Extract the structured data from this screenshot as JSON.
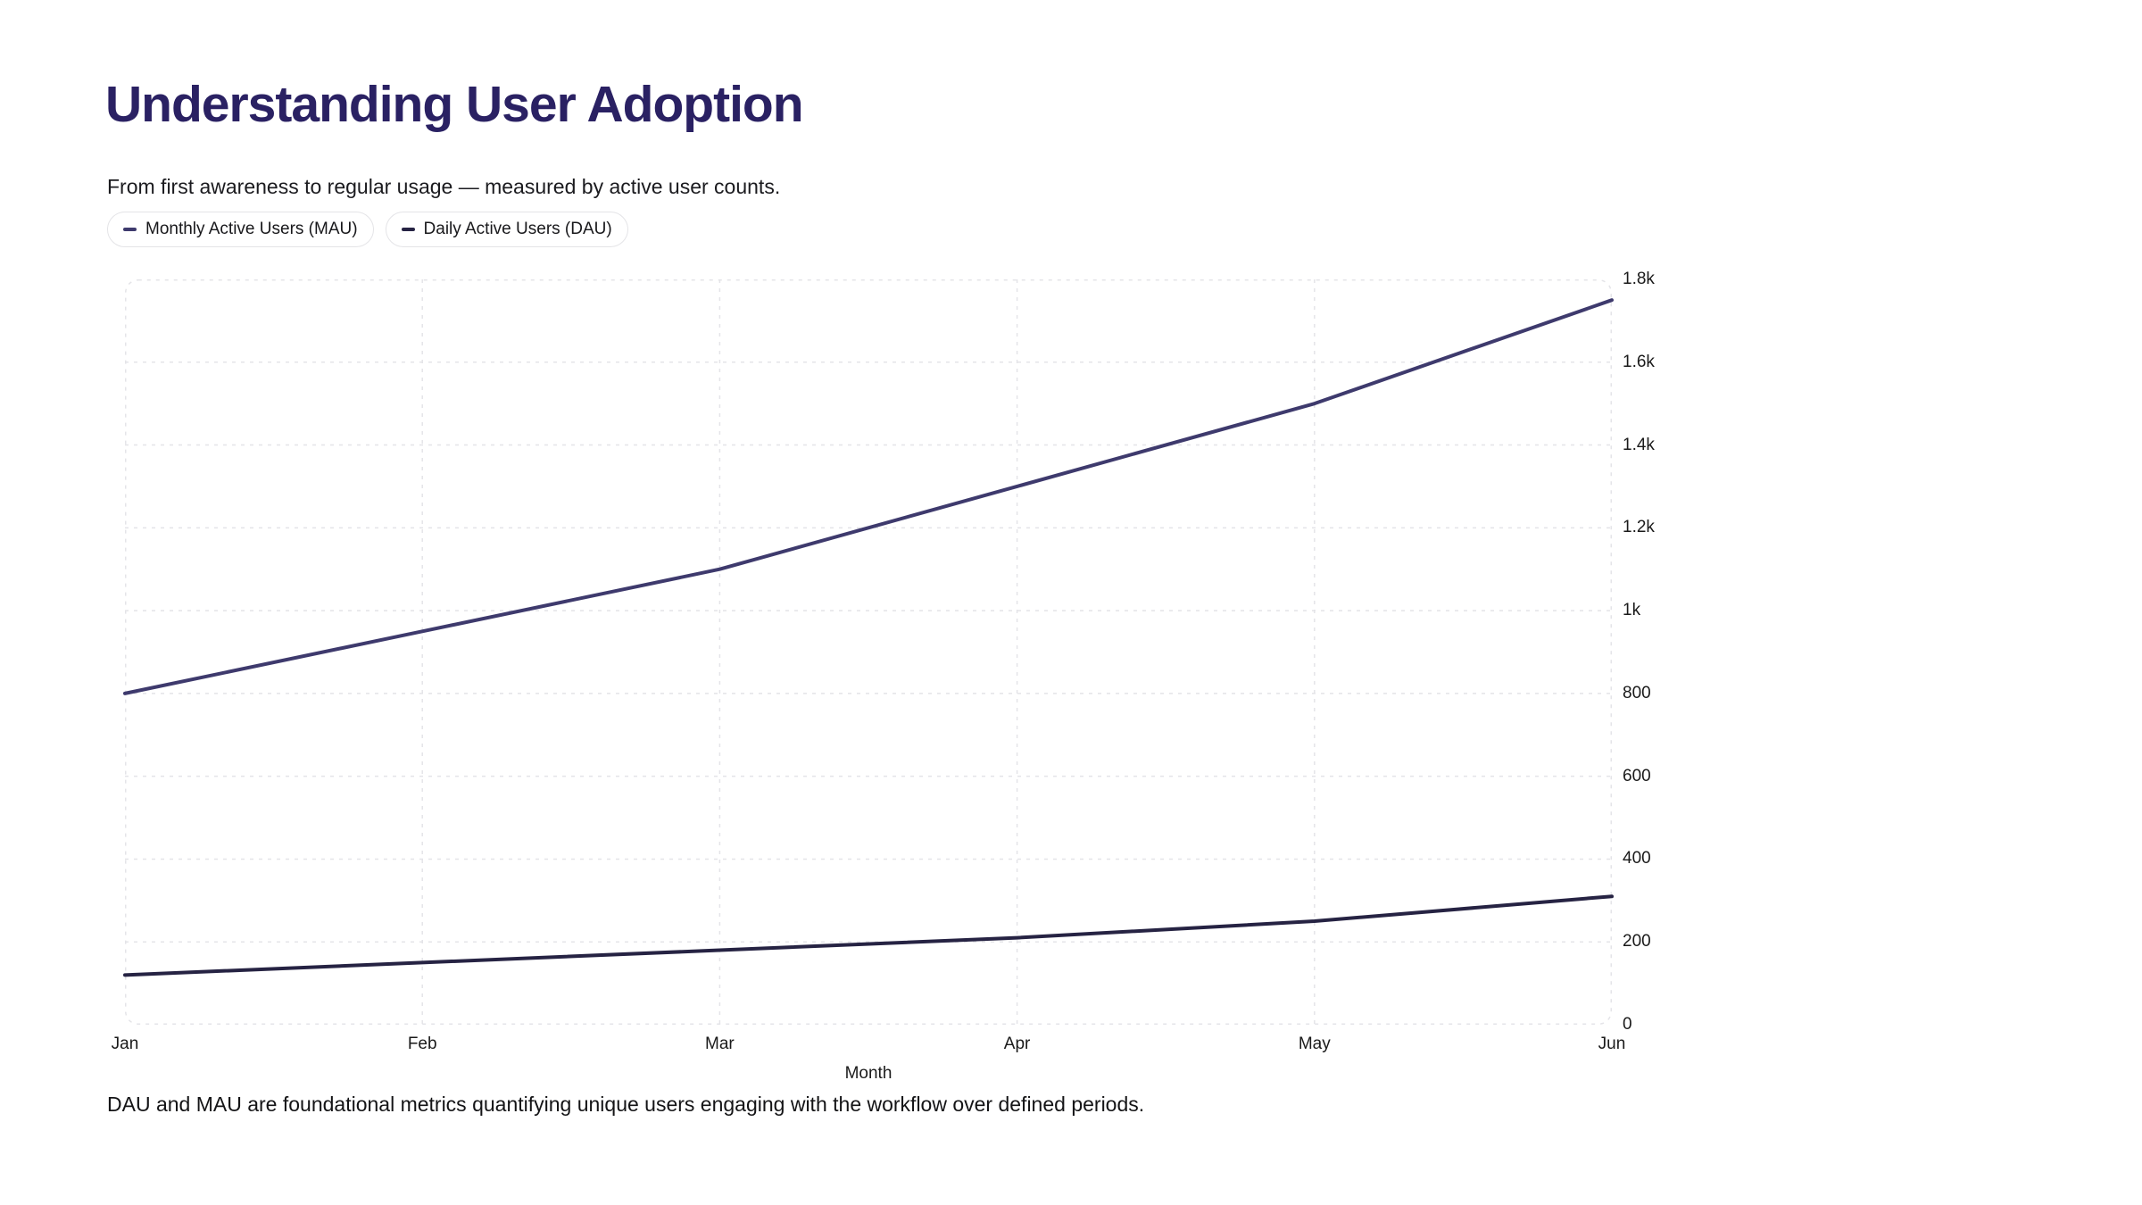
{
  "header": {
    "title": "Understanding User Adoption",
    "subtitle": "From first awareness to regular usage — measured by active user counts."
  },
  "caption": "DAU and MAU are foundational metrics quantifying unique users engaging with the workflow over defined periods.",
  "colors": {
    "title": "#2a2163",
    "grid": "#e4e4e8",
    "text": "#1a1a1a"
  },
  "chart_data": {
    "type": "line",
    "title": "Understanding User Adoption",
    "subtitle": "From first awareness to regular usage — measured by active user counts.",
    "xlabel": "Month",
    "ylabel": "",
    "categories": [
      "Jan",
      "Feb",
      "Mar",
      "Apr",
      "May",
      "Jun"
    ],
    "series": [
      {
        "name": "Monthly Active Users (MAU)",
        "color": "#3e3a6d",
        "values": [
          800,
          950,
          1100,
          1300,
          1500,
          1750
        ]
      },
      {
        "name": "Daily Active Users (DAU)",
        "color": "#262343",
        "values": [
          120,
          150,
          180,
          210,
          250,
          310
        ]
      }
    ],
    "ylim": [
      0,
      1800
    ],
    "yticks": [
      {
        "value": 0,
        "label": "0"
      },
      {
        "value": 200,
        "label": "200"
      },
      {
        "value": 400,
        "label": "400"
      },
      {
        "value": 600,
        "label": "600"
      },
      {
        "value": 800,
        "label": "800"
      },
      {
        "value": 1000,
        "label": "1k"
      },
      {
        "value": 1200,
        "label": "1.2k"
      },
      {
        "value": 1400,
        "label": "1.4k"
      },
      {
        "value": 1600,
        "label": "1.6k"
      },
      {
        "value": 1800,
        "label": "1.8k"
      }
    ],
    "grid": "dashed",
    "legend_position": "top-left",
    "ytick_side": "right",
    "caption": "DAU and MAU are foundational metrics quantifying unique users engaging with the workflow over defined periods."
  }
}
